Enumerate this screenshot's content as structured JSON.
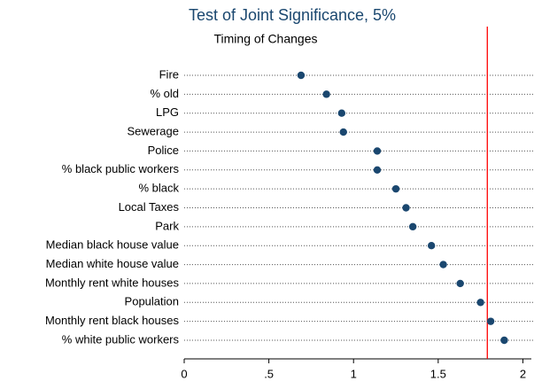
{
  "chart_data": {
    "type": "dot",
    "title": "Test of Joint Significance, 5%",
    "subtitle": "Timing of Changes",
    "categories": [
      "Fire",
      "% old",
      "LPG",
      "Sewerage",
      "Police",
      "% black public workers",
      "% black",
      "Local Taxes",
      "Park",
      "Median black house value",
      "Median white house value",
      "Monthly rent white houses",
      "Population",
      "Monthly rent black houses",
      "% white public workers"
    ],
    "values": [
      0.69,
      0.84,
      0.93,
      0.94,
      1.14,
      1.14,
      1.25,
      1.31,
      1.35,
      1.46,
      1.53,
      1.63,
      1.75,
      1.81,
      1.89
    ],
    "color": "#1a476f",
    "reference_line": {
      "value": 1.79,
      "color": "#ff0000"
    },
    "xlim": [
      0,
      2.05
    ],
    "xticks": [
      0,
      {
        "value": 0.5,
        "label": ".5"
      },
      1,
      1.5,
      2
    ]
  }
}
